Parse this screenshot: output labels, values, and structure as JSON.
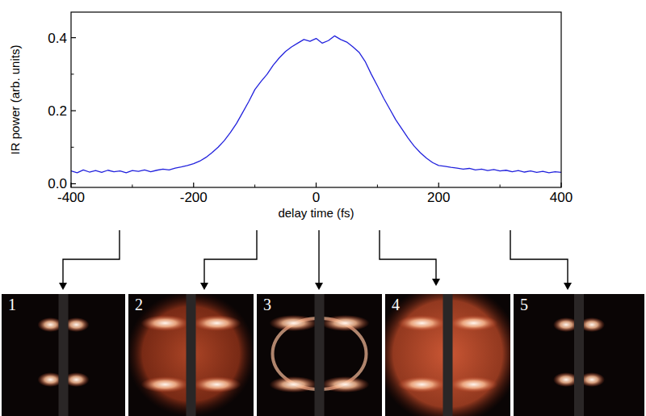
{
  "chart_data": {
    "type": "line",
    "x_label": "delay time (fs)",
    "y_label": "IR power (arb. units)",
    "color": "#2222dd",
    "xlim": [
      -400,
      400
    ],
    "ylim": [
      -0.01,
      0.47
    ],
    "xticks": [
      -400,
      -200,
      0,
      200,
      400
    ],
    "yticks": [
      {
        "value": 0,
        "label": "0.0"
      },
      0.2,
      0.4
    ],
    "x": [
      -400,
      -390,
      -380,
      -370,
      -360,
      -350,
      -340,
      -330,
      -320,
      -310,
      -300,
      -290,
      -280,
      -270,
      -260,
      -250,
      -240,
      -230,
      -220,
      -210,
      -200,
      -190,
      -180,
      -170,
      -160,
      -150,
      -140,
      -130,
      -120,
      -110,
      -100,
      -90,
      -80,
      -70,
      -60,
      -50,
      -40,
      -30,
      -20,
      -10,
      0,
      10,
      20,
      30,
      40,
      50,
      60,
      70,
      80,
      90,
      100,
      110,
      120,
      130,
      140,
      150,
      160,
      170,
      180,
      190,
      200,
      210,
      220,
      230,
      240,
      250,
      260,
      270,
      280,
      290,
      300,
      310,
      320,
      330,
      340,
      350,
      360,
      370,
      380,
      390,
      400
    ],
    "values": [
      0.035,
      0.03,
      0.038,
      0.032,
      0.036,
      0.031,
      0.037,
      0.033,
      0.035,
      0.03,
      0.036,
      0.034,
      0.038,
      0.033,
      0.037,
      0.04,
      0.038,
      0.043,
      0.046,
      0.05,
      0.055,
      0.062,
      0.072,
      0.085,
      0.1,
      0.118,
      0.14,
      0.165,
      0.195,
      0.225,
      0.258,
      0.28,
      0.3,
      0.325,
      0.345,
      0.362,
      0.375,
      0.385,
      0.395,
      0.39,
      0.398,
      0.385,
      0.392,
      0.405,
      0.395,
      0.388,
      0.375,
      0.36,
      0.335,
      0.3,
      0.268,
      0.235,
      0.205,
      0.175,
      0.15,
      0.125,
      0.103,
      0.085,
      0.07,
      0.058,
      0.05,
      0.048,
      0.045,
      0.043,
      0.04,
      0.042,
      0.038,
      0.04,
      0.036,
      0.039,
      0.035,
      0.037,
      0.033,
      0.036,
      0.032,
      0.035,
      0.031,
      0.034,
      0.03,
      0.033,
      0.031
    ]
  },
  "panels": {
    "labels": [
      "1",
      "2",
      "3",
      "4",
      "5"
    ]
  }
}
